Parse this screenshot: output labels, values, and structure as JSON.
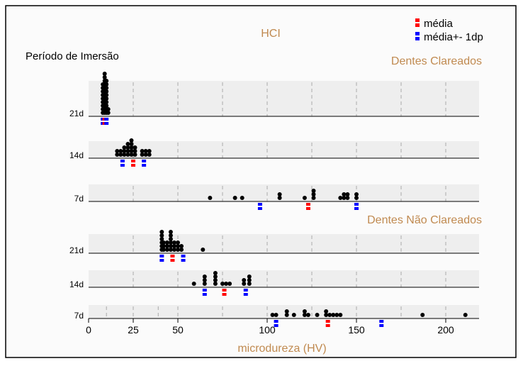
{
  "chart_data": {
    "type": "scatter",
    "title": "HCI",
    "ylabel": "Período de Imersão",
    "xlabel": "microdureza (HV)",
    "xlim": [
      0,
      220
    ],
    "xticks": [
      0,
      25,
      50,
      100,
      150,
      200
    ],
    "grid": true,
    "legend_position": "top-right",
    "legend": [
      {
        "label": "média",
        "color": "#ff0000"
      },
      {
        "label": "média+- 1dp",
        "color": "#0000ff"
      }
    ],
    "groups": [
      {
        "name": "Dentes Clareados",
        "rows": [
          {
            "label": "21d",
            "points": [
              8,
              8,
              8,
              8,
              8,
              8,
              8,
              8,
              8,
              9,
              9,
              9,
              9,
              9,
              9,
              9,
              9,
              9,
              9,
              9,
              9,
              10,
              10,
              10,
              10,
              10,
              10,
              10,
              10,
              10,
              10,
              11,
              11
            ],
            "mean": 9,
            "sd_low": 8,
            "sd_high": 10
          },
          {
            "label": "14d",
            "points": [
              16,
              16,
              18,
              18,
              20,
              20,
              20,
              22,
              22,
              22,
              22,
              24,
              24,
              24,
              24,
              24,
              26,
              26,
              26,
              30,
              30,
              32,
              32,
              34,
              34
            ],
            "mean": 25,
            "sd_low": 19,
            "sd_high": 31
          },
          {
            "label": "7d",
            "points": [
              68,
              82,
              86,
              107,
              107,
              121,
              126,
              126,
              126,
              141,
              143,
              143,
              145,
              145,
              150,
              150
            ],
            "mean": 123,
            "sd_low": 96,
            "sd_high": 150
          }
        ]
      },
      {
        "name": "Dentes Não Clareados",
        "rows": [
          {
            "label": "21d",
            "points": [
              41,
              41,
              41,
              41,
              41,
              41,
              42,
              42,
              42,
              44,
              44,
              44,
              46,
              46,
              46,
              46,
              46,
              46,
              48,
              48,
              48,
              50,
              50,
              50,
              52,
              52,
              64
            ],
            "mean": 47,
            "sd_low": 41,
            "sd_high": 53
          },
          {
            "label": "14d",
            "points": [
              59,
              65,
              65,
              65,
              71,
              71,
              71,
              71,
              75,
              77,
              79,
              87,
              87,
              90,
              90,
              90
            ],
            "mean": 76,
            "sd_low": 65,
            "sd_high": 88
          },
          {
            "label": "7d",
            "points": [
              103,
              105,
              111,
              111,
              115,
              121,
              121,
              123,
              128,
              133,
              133,
              135,
              137,
              139,
              141,
              187,
              211
            ],
            "mean": 134,
            "sd_low": 105,
            "sd_high": 164
          }
        ]
      }
    ]
  }
}
